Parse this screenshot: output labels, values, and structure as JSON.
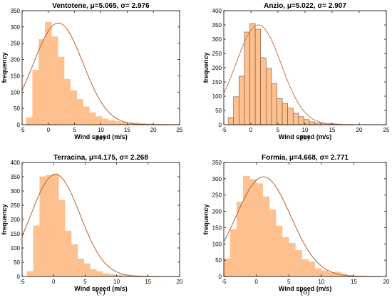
{
  "chart_data": [
    {
      "type": "bar",
      "title_name": "Ventotene",
      "title_params": ", μ=5.065, σ= 2.976",
      "xlabel": "Wind speed (m/s)",
      "ylabel": "frequency",
      "caption": "(a)",
      "xlim": [
        -5,
        25
      ],
      "ylim": [
        0,
        350
      ],
      "xticks": [
        "-5",
        "0",
        "5",
        "10",
        "15",
        "20",
        "25"
      ],
      "yticks": [
        "0",
        "50",
        "100",
        "150",
        "200",
        "250",
        "300",
        "350"
      ],
      "bin_width": 1.2,
      "bin_start": -4.2,
      "values": [
        22,
        168,
        262,
        315,
        270,
        208,
        140,
        105,
        78,
        55,
        37,
        25,
        18,
        13,
        10,
        8,
        6,
        5,
        4,
        3,
        2,
        1,
        1
      ],
      "curve": {
        "mu": 1.9,
        "sigma": 4.7,
        "peak": 312
      },
      "bar_color": "#fdc08e",
      "bar_edge": "#fdc08e",
      "curve_color": "#b96e3f"
    },
    {
      "type": "bar",
      "title_name": "Anzio",
      "title_params": ", μ=5.022, σ= 2.907",
      "xlabel": "Wind speed (m/s)",
      "ylabel": "frequency",
      "caption": "(b)",
      "xlim": [
        -5,
        25
      ],
      "ylim": [
        0,
        400
      ],
      "xticks": [
        "-5",
        "0",
        "5",
        "10",
        "15",
        "20",
        "25"
      ],
      "yticks": [
        "0",
        "50",
        "100",
        "150",
        "200",
        "250",
        "300",
        "350",
        "400"
      ],
      "bin_width": 1.0,
      "bin_start": -4.2,
      "values": [
        25,
        98,
        170,
        325,
        355,
        335,
        235,
        198,
        145,
        92,
        75,
        58,
        40,
        28,
        18,
        10,
        6,
        5,
        4,
        3,
        2,
        1,
        1
      ],
      "curve": {
        "mu": 1.4,
        "sigma": 4.2,
        "peak": 350
      },
      "bar_color": "#fdc08e",
      "bar_edge": "#7a4f33",
      "curve_color": "#c8875a"
    },
    {
      "type": "bar",
      "title_name": "Terracina",
      "title_params": ", μ=4.175, σ= 2.268",
      "xlabel": "Wind speed (m/s)",
      "ylabel": "frequency",
      "caption": "(c)",
      "xlim": [
        -5,
        20
      ],
      "ylim": [
        0,
        400
      ],
      "xticks": [
        "-5",
        "0",
        "5",
        "10",
        "15",
        "20"
      ],
      "yticks": [
        "0",
        "50",
        "100",
        "150",
        "200",
        "250",
        "300",
        "350",
        "400"
      ],
      "bin_width": 1.0,
      "bin_start": -4.2,
      "values": [
        18,
        178,
        350,
        355,
        360,
        268,
        160,
        112,
        62,
        45,
        25,
        18,
        10,
        7,
        5,
        4,
        3,
        2,
        1,
        1
      ],
      "curve": {
        "mu": 0.3,
        "sigma": 3.9,
        "peak": 358
      },
      "bar_color": "#fdc08e",
      "bar_edge": "#fdc08e",
      "curve_color": "#b96e3f"
    },
    {
      "type": "bar",
      "title_name": "Formia",
      "title_params": ", μ=4.668, σ= 2.771",
      "xlabel": "Wind speed (m/s)",
      "ylabel": "frequency",
      "caption": "(d)",
      "xlim": [
        -5,
        20
      ],
      "ylim": [
        0,
        350
      ],
      "xticks": [
        "-5",
        "0",
        "5",
        "10",
        "15",
        "20"
      ],
      "yticks": [
        "0",
        "50",
        "100",
        "150",
        "200",
        "250",
        "300",
        "350"
      ],
      "bin_width": 1.0,
      "bin_start": -5.0,
      "values": [
        55,
        145,
        228,
        308,
        298,
        285,
        245,
        205,
        155,
        120,
        102,
        80,
        52,
        45,
        25,
        18,
        12,
        14,
        8,
        4,
        2,
        1
      ],
      "curve": {
        "mu": 1.1,
        "sigma": 4.2,
        "peak": 306
      },
      "bar_color": "#fdc08e",
      "bar_edge": "#fdc08e",
      "curve_color": "#b96e3f"
    }
  ]
}
